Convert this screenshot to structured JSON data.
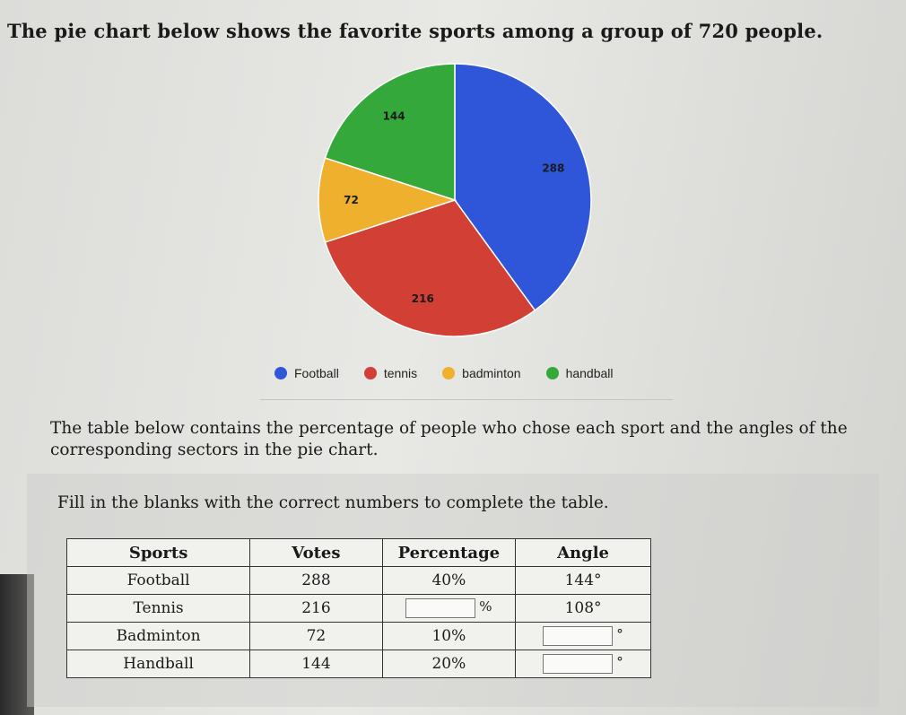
{
  "intro_text": "The pie chart below shows the favorite sports among a group of 720 people.",
  "chart_data": {
    "type": "pie",
    "title": "",
    "categories": [
      "Football",
      "tennis",
      "badminton",
      "handball"
    ],
    "values": [
      288,
      216,
      72,
      144
    ],
    "data_labels": [
      "288",
      "216",
      "72",
      "144"
    ],
    "colors": [
      "#2f56d9",
      "#d23f35",
      "#efb02e",
      "#35a83c"
    ],
    "start_angle_deg": 0,
    "direction": "clockwise",
    "legend_position": "bottom"
  },
  "description_text": "The table below contains the percentage of people who chose each sport and the angles of the corresponding sectors in the pie chart.",
  "instruction_text": "Fill in the blanks with the correct numbers to complete the table.",
  "table": {
    "headers": [
      "Sports",
      "Votes",
      "Percentage",
      "Angle"
    ],
    "percent_sign": "%",
    "degree_sign": "°",
    "rows": [
      {
        "sport": "Football",
        "votes": "288",
        "percentage": "40%",
        "angle": "144°"
      },
      {
        "sport": "Tennis",
        "votes": "216",
        "percentage": "",
        "angle": "108°"
      },
      {
        "sport": "Badminton",
        "votes": "72",
        "percentage": "10%",
        "angle": ""
      },
      {
        "sport": "Handball",
        "votes": "144",
        "percentage": "20%",
        "angle": ""
      }
    ]
  }
}
